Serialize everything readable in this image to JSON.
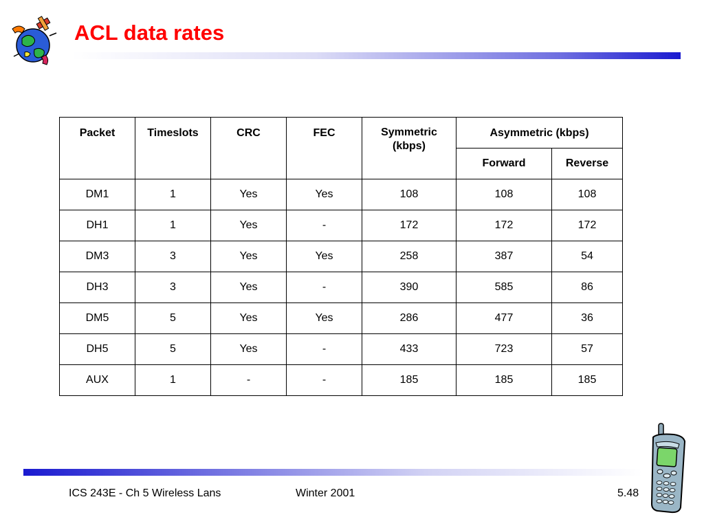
{
  "slide": {
    "title": "ACL data rates",
    "logo_icon": "globe-satellite-phone-icon",
    "phone_icon": "mobile-phone-icon",
    "title_color": "#ff0000",
    "bar_color": "#1a1ad0"
  },
  "table": {
    "headers": {
      "packet": "Packet",
      "timeslots": "Timeslots",
      "crc": "CRC",
      "fec": "FEC",
      "symmetric": "Symmetric (kbps)",
      "asymmetric": "Asymmetric (kbps)",
      "forward": "Forward",
      "reverse": "Reverse"
    },
    "rows": [
      [
        "DM1",
        "1",
        "Yes",
        "Yes",
        "108",
        "108",
        "108"
      ],
      [
        "DH1",
        "1",
        "Yes",
        "-",
        "172",
        "172",
        "172"
      ],
      [
        "DM3",
        "3",
        "Yes",
        "Yes",
        "258",
        "387",
        "54"
      ],
      [
        "DH3",
        "3",
        "Yes",
        "-",
        "390",
        "585",
        "86"
      ],
      [
        "DM5",
        "5",
        "Yes",
        "Yes",
        "286",
        "477",
        "36"
      ],
      [
        "DH5",
        "5",
        "Yes",
        "-",
        "433",
        "723",
        "57"
      ],
      [
        "AUX",
        "1",
        "-",
        "-",
        "185",
        "185",
        "185"
      ]
    ]
  },
  "footer": {
    "course": "ICS 243E - Ch 5 Wireless Lans",
    "term": "Winter 2001",
    "page": "5.48"
  }
}
